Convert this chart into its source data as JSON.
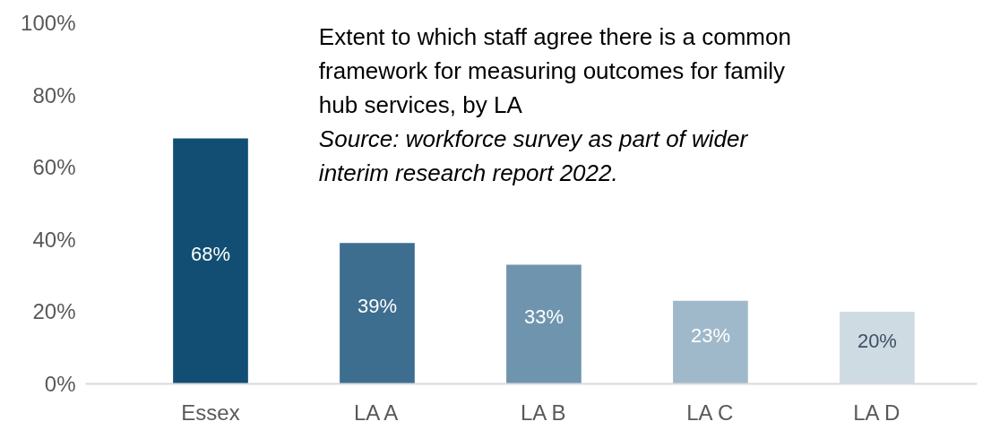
{
  "chart_data": {
    "type": "bar",
    "title": "Extent to which staff agree there is a common framework for measuring outcomes for family hub services, by LA",
    "annotations": [
      "Source: workforce survey as part of wider interim research report 2022."
    ],
    "categories": [
      "Essex",
      "LA A",
      "LA B",
      "LA C",
      "LA D"
    ],
    "values": [
      68,
      39,
      33,
      23,
      20
    ],
    "colors": [
      "#124e73",
      "#3d6e8f",
      "#6f95ae",
      "#a0b9ca",
      "#cfdbe3"
    ],
    "ylim": [
      0,
      100
    ],
    "yticks": [
      {
        "value": 0,
        "label": "0%"
      },
      {
        "value": 20,
        "label": "20%"
      },
      {
        "value": 40,
        "label": "40%"
      },
      {
        "value": 60,
        "label": "60%"
      },
      {
        "value": 80,
        "label": "80%"
      },
      {
        "value": 100,
        "label": "100%"
      }
    ],
    "grid": false,
    "value_labels": [
      "68%",
      "39%",
      "33%",
      "23%",
      "20%"
    ]
  }
}
